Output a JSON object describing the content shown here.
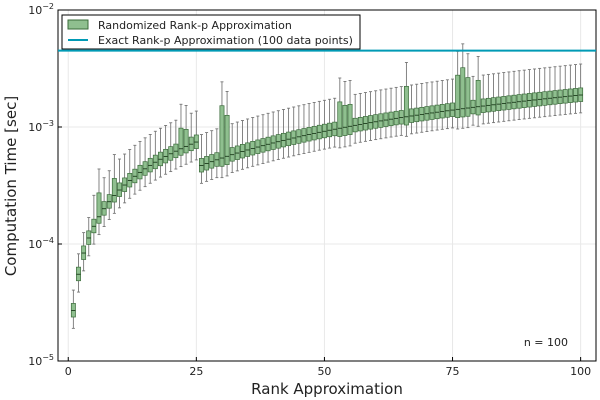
{
  "chart_data": {
    "type": "box",
    "xlabel": "Rank Approximation",
    "ylabel": "Computation Time [sec]",
    "xlim": [
      -2,
      103
    ],
    "ylim": [
      1e-05,
      0.01
    ],
    "yscale": "log",
    "xticks": [
      0,
      25,
      50,
      75,
      100
    ],
    "yticks": [
      1e-05,
      0.0001,
      0.001,
      0.01
    ],
    "ytick_bases": [
      "10",
      "10",
      "10",
      "10"
    ],
    "ytick_exps": [
      "−5",
      "−4",
      "−3",
      "−2"
    ],
    "grid": true,
    "legend_position": "top-left",
    "colors": {
      "box": "#8fbf8f",
      "box_edge": "#3a6b3a",
      "exact": "#009ab5",
      "whisker": "#777777"
    },
    "legend": [
      {
        "label": "Randomized Rank-p Approximation"
      },
      {
        "label": "Exact Rank-p Approximation (100 data points)"
      }
    ],
    "annotation": "n = 100",
    "series": [
      {
        "name": "Exact Rank-p Approximation (100 data points)",
        "type": "hline",
        "y": 0.0045
      },
      {
        "name": "Randomized Rank-p Approximation",
        "type": "box",
        "x": [
          1,
          2,
          3,
          4,
          5,
          6,
          7,
          8,
          9,
          10,
          11,
          12,
          13,
          14,
          15,
          16,
          17,
          18,
          19,
          20,
          21,
          22,
          23,
          24,
          25,
          26,
          27,
          28,
          29,
          30,
          31,
          32,
          33,
          34,
          35,
          36,
          37,
          38,
          39,
          40,
          41,
          42,
          43,
          44,
          45,
          46,
          47,
          48,
          49,
          50,
          51,
          52,
          53,
          54,
          55,
          56,
          57,
          58,
          59,
          60,
          61,
          62,
          63,
          64,
          65,
          66,
          67,
          68,
          69,
          70,
          71,
          72,
          73,
          74,
          75,
          76,
          77,
          78,
          79,
          80,
          81,
          82,
          83,
          84,
          85,
          86,
          87,
          88,
          89,
          90,
          91,
          92,
          93,
          94,
          95,
          96,
          97,
          98,
          99,
          100
        ]
      }
    ]
  }
}
